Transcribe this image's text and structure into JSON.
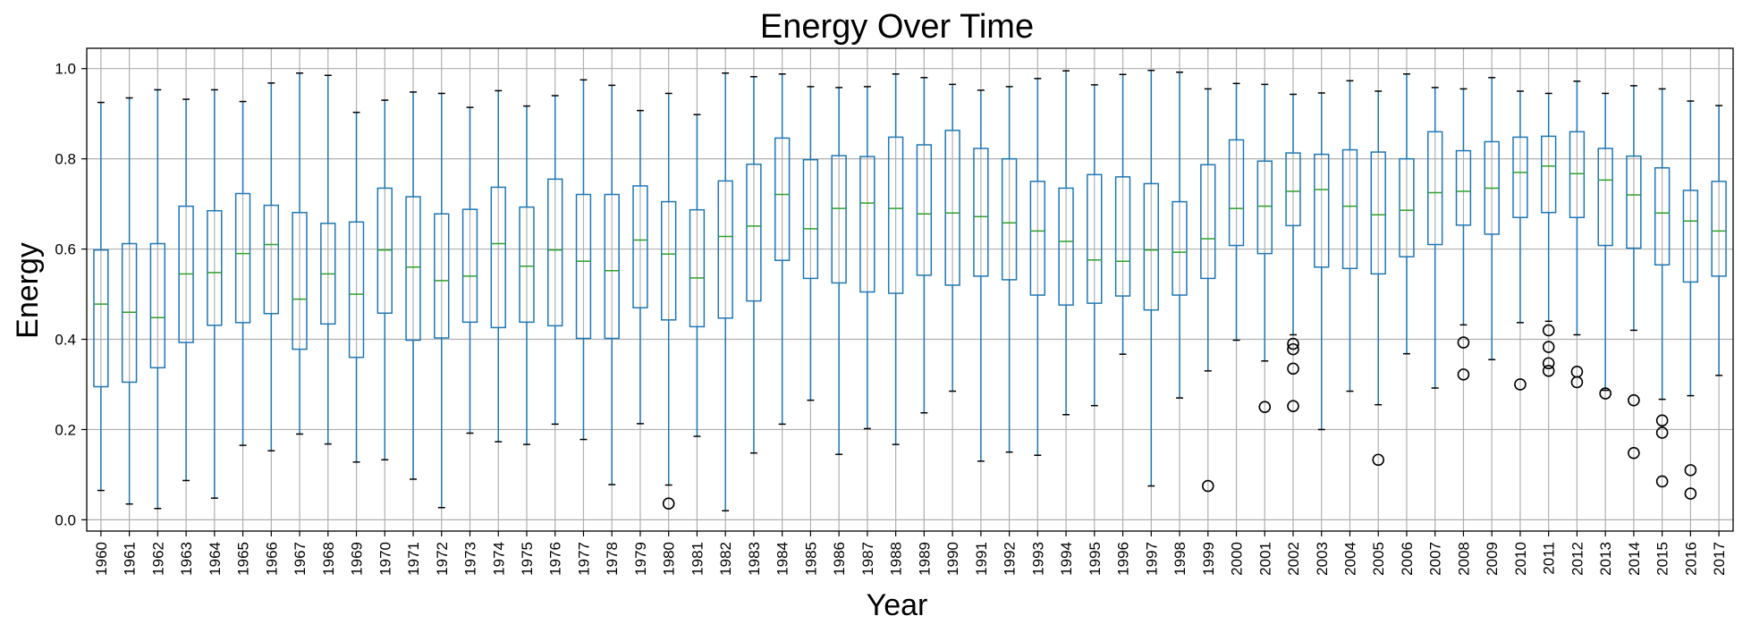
{
  "chart_data": {
    "type": "box",
    "title": "Energy Over Time",
    "xlabel": "Year",
    "ylabel": "Energy",
    "ylim": [
      -0.025,
      1.045
    ],
    "yticks": [
      "0.0",
      "0.2",
      "0.4",
      "0.6",
      "0.8",
      "1.0"
    ],
    "grid": true,
    "colors": {
      "box": "#1f77b4",
      "median": "#2ca02c",
      "whisker_cap": "#000000",
      "flier": "#000000",
      "grid": "#b0b0b0"
    },
    "categories": [
      "1960",
      "1961",
      "1962",
      "1963",
      "1964",
      "1965",
      "1966",
      "1967",
      "1968",
      "1969",
      "1970",
      "1971",
      "1972",
      "1973",
      "1974",
      "1975",
      "1976",
      "1977",
      "1978",
      "1979",
      "1980",
      "1981",
      "1982",
      "1983",
      "1984",
      "1985",
      "1986",
      "1987",
      "1988",
      "1989",
      "1990",
      "1991",
      "1992",
      "1993",
      "1994",
      "1995",
      "1996",
      "1997",
      "1998",
      "1999",
      "2000",
      "2001",
      "2002",
      "2003",
      "2004",
      "2005",
      "2006",
      "2007",
      "2008",
      "2009",
      "2010",
      "2011",
      "2012",
      "2013",
      "2014",
      "2015",
      "2016",
      "2017"
    ],
    "boxes": [
      {
        "min": 0.065,
        "q1": 0.295,
        "median": 0.478,
        "q3": 0.598,
        "max": 0.925,
        "fliers": []
      },
      {
        "min": 0.035,
        "q1": 0.305,
        "median": 0.46,
        "q3": 0.612,
        "max": 0.935,
        "fliers": []
      },
      {
        "min": 0.025,
        "q1": 0.337,
        "median": 0.448,
        "q3": 0.612,
        "max": 0.953,
        "fliers": []
      },
      {
        "min": 0.087,
        "q1": 0.393,
        "median": 0.545,
        "q3": 0.695,
        "max": 0.932,
        "fliers": []
      },
      {
        "min": 0.048,
        "q1": 0.431,
        "median": 0.548,
        "q3": 0.685,
        "max": 0.953,
        "fliers": []
      },
      {
        "min": 0.165,
        "q1": 0.437,
        "median": 0.59,
        "q3": 0.723,
        "max": 0.927,
        "fliers": []
      },
      {
        "min": 0.153,
        "q1": 0.457,
        "median": 0.61,
        "q3": 0.697,
        "max": 0.968,
        "fliers": []
      },
      {
        "min": 0.19,
        "q1": 0.378,
        "median": 0.489,
        "q3": 0.681,
        "max": 0.99,
        "fliers": []
      },
      {
        "min": 0.168,
        "q1": 0.434,
        "median": 0.545,
        "q3": 0.657,
        "max": 0.985,
        "fliers": []
      },
      {
        "min": 0.128,
        "q1": 0.36,
        "median": 0.5,
        "q3": 0.66,
        "max": 0.903,
        "fliers": []
      },
      {
        "min": 0.133,
        "q1": 0.458,
        "median": 0.598,
        "q3": 0.735,
        "max": 0.93,
        "fliers": []
      },
      {
        "min": 0.09,
        "q1": 0.398,
        "median": 0.56,
        "q3": 0.716,
        "max": 0.948,
        "fliers": []
      },
      {
        "min": 0.027,
        "q1": 0.403,
        "median": 0.53,
        "q3": 0.678,
        "max": 0.945,
        "fliers": []
      },
      {
        "min": 0.192,
        "q1": 0.438,
        "median": 0.54,
        "q3": 0.688,
        "max": 0.914,
        "fliers": []
      },
      {
        "min": 0.173,
        "q1": 0.426,
        "median": 0.612,
        "q3": 0.737,
        "max": 0.951,
        "fliers": []
      },
      {
        "min": 0.167,
        "q1": 0.438,
        "median": 0.562,
        "q3": 0.693,
        "max": 0.917,
        "fliers": []
      },
      {
        "min": 0.212,
        "q1": 0.43,
        "median": 0.598,
        "q3": 0.755,
        "max": 0.94,
        "fliers": []
      },
      {
        "min": 0.178,
        "q1": 0.402,
        "median": 0.573,
        "q3": 0.721,
        "max": 0.975,
        "fliers": []
      },
      {
        "min": 0.078,
        "q1": 0.402,
        "median": 0.552,
        "q3": 0.721,
        "max": 0.963,
        "fliers": []
      },
      {
        "min": 0.213,
        "q1": 0.47,
        "median": 0.62,
        "q3": 0.74,
        "max": 0.907,
        "fliers": []
      },
      {
        "min": 0.077,
        "q1": 0.443,
        "median": 0.589,
        "q3": 0.705,
        "max": 0.945,
        "fliers": [
          0.036
        ]
      },
      {
        "min": 0.185,
        "q1": 0.428,
        "median": 0.536,
        "q3": 0.687,
        "max": 0.898,
        "fliers": []
      },
      {
        "min": 0.02,
        "q1": 0.447,
        "median": 0.628,
        "q3": 0.751,
        "max": 0.99,
        "fliers": []
      },
      {
        "min": 0.148,
        "q1": 0.485,
        "median": 0.651,
        "q3": 0.788,
        "max": 0.982,
        "fliers": []
      },
      {
        "min": 0.212,
        "q1": 0.575,
        "median": 0.721,
        "q3": 0.846,
        "max": 0.988,
        "fliers": []
      },
      {
        "min": 0.265,
        "q1": 0.535,
        "median": 0.645,
        "q3": 0.798,
        "max": 0.96,
        "fliers": []
      },
      {
        "min": 0.145,
        "q1": 0.525,
        "median": 0.69,
        "q3": 0.807,
        "max": 0.958,
        "fliers": []
      },
      {
        "min": 0.202,
        "q1": 0.505,
        "median": 0.702,
        "q3": 0.805,
        "max": 0.96,
        "fliers": []
      },
      {
        "min": 0.167,
        "q1": 0.502,
        "median": 0.69,
        "q3": 0.848,
        "max": 0.988,
        "fliers": []
      },
      {
        "min": 0.237,
        "q1": 0.542,
        "median": 0.678,
        "q3": 0.831,
        "max": 0.98,
        "fliers": []
      },
      {
        "min": 0.285,
        "q1": 0.52,
        "median": 0.68,
        "q3": 0.863,
        "max": 0.965,
        "fliers": []
      },
      {
        "min": 0.13,
        "q1": 0.54,
        "median": 0.672,
        "q3": 0.823,
        "max": 0.952,
        "fliers": []
      },
      {
        "min": 0.15,
        "q1": 0.532,
        "median": 0.658,
        "q3": 0.8,
        "max": 0.96,
        "fliers": []
      },
      {
        "min": 0.143,
        "q1": 0.498,
        "median": 0.64,
        "q3": 0.75,
        "max": 0.978,
        "fliers": []
      },
      {
        "min": 0.233,
        "q1": 0.476,
        "median": 0.617,
        "q3": 0.735,
        "max": 0.995,
        "fliers": []
      },
      {
        "min": 0.253,
        "q1": 0.48,
        "median": 0.576,
        "q3": 0.765,
        "max": 0.964,
        "fliers": []
      },
      {
        "min": 0.367,
        "q1": 0.496,
        "median": 0.573,
        "q3": 0.76,
        "max": 0.987,
        "fliers": []
      },
      {
        "min": 0.075,
        "q1": 0.465,
        "median": 0.598,
        "q3": 0.745,
        "max": 0.996,
        "fliers": []
      },
      {
        "min": 0.27,
        "q1": 0.498,
        "median": 0.593,
        "q3": 0.705,
        "max": 0.992,
        "fliers": []
      },
      {
        "min": 0.33,
        "q1": 0.535,
        "median": 0.623,
        "q3": 0.787,
        "max": 0.955,
        "fliers": [
          0.075
        ]
      },
      {
        "min": 0.398,
        "q1": 0.608,
        "median": 0.69,
        "q3": 0.842,
        "max": 0.967,
        "fliers": []
      },
      {
        "min": 0.352,
        "q1": 0.59,
        "median": 0.695,
        "q3": 0.795,
        "max": 0.965,
        "fliers": [
          0.25
        ]
      },
      {
        "min": 0.41,
        "q1": 0.652,
        "median": 0.728,
        "q3": 0.813,
        "max": 0.943,
        "fliers": [
          0.39,
          0.378,
          0.335,
          0.252
        ]
      },
      {
        "min": 0.2,
        "q1": 0.56,
        "median": 0.732,
        "q3": 0.81,
        "max": 0.946,
        "fliers": []
      },
      {
        "min": 0.285,
        "q1": 0.557,
        "median": 0.695,
        "q3": 0.82,
        "max": 0.973,
        "fliers": []
      },
      {
        "min": 0.255,
        "q1": 0.545,
        "median": 0.676,
        "q3": 0.815,
        "max": 0.95,
        "fliers": [
          0.133
        ]
      },
      {
        "min": 0.368,
        "q1": 0.583,
        "median": 0.686,
        "q3": 0.8,
        "max": 0.988,
        "fliers": []
      },
      {
        "min": 0.292,
        "q1": 0.61,
        "median": 0.725,
        "q3": 0.86,
        "max": 0.958,
        "fliers": []
      },
      {
        "min": 0.432,
        "q1": 0.653,
        "median": 0.728,
        "q3": 0.818,
        "max": 0.955,
        "fliers": [
          0.393,
          0.322
        ]
      },
      {
        "min": 0.355,
        "q1": 0.633,
        "median": 0.735,
        "q3": 0.838,
        "max": 0.98,
        "fliers": []
      },
      {
        "min": 0.437,
        "q1": 0.67,
        "median": 0.77,
        "q3": 0.848,
        "max": 0.95,
        "fliers": [
          0.3
        ]
      },
      {
        "min": 0.44,
        "q1": 0.681,
        "median": 0.784,
        "q3": 0.85,
        "max": 0.945,
        "fliers": [
          0.42,
          0.383,
          0.347,
          0.33
        ]
      },
      {
        "min": 0.41,
        "q1": 0.67,
        "median": 0.767,
        "q3": 0.86,
        "max": 0.972,
        "fliers": [
          0.328,
          0.305
        ]
      },
      {
        "min": 0.287,
        "q1": 0.608,
        "median": 0.753,
        "q3": 0.823,
        "max": 0.945,
        "fliers": [
          0.28
        ]
      },
      {
        "min": 0.42,
        "q1": 0.602,
        "median": 0.72,
        "q3": 0.806,
        "max": 0.962,
        "fliers": [
          0.265,
          0.148
        ]
      },
      {
        "min": 0.267,
        "q1": 0.565,
        "median": 0.68,
        "q3": 0.78,
        "max": 0.955,
        "fliers": [
          0.22,
          0.193,
          0.085
        ]
      },
      {
        "min": 0.275,
        "q1": 0.527,
        "median": 0.662,
        "q3": 0.73,
        "max": 0.928,
        "fliers": [
          0.11,
          0.058
        ]
      },
      {
        "min": 0.32,
        "q1": 0.54,
        "median": 0.64,
        "q3": 0.75,
        "max": 0.918,
        "fliers": []
      }
    ]
  }
}
